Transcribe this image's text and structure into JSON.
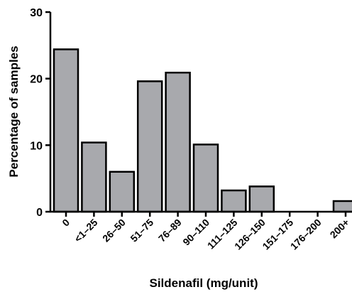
{
  "chart_data": {
    "type": "bar",
    "categories": [
      "0",
      "<1–25",
      "26–50",
      "51–75",
      "76–89",
      "90–110",
      "111–125",
      "126–150",
      "151–175",
      "176–200",
      "200+"
    ],
    "values": [
      24.4,
      10.4,
      6.0,
      19.6,
      20.9,
      10.1,
      3.2,
      3.8,
      0,
      0,
      1.6
    ],
    "title": "",
    "xlabel": "Sildenafil (mg/unit)",
    "ylabel": "Percentage of samples",
    "ylim": [
      0,
      30
    ],
    "yticks": [
      0,
      10,
      20,
      30
    ],
    "grid": false,
    "bar_color": "#a8a9ad",
    "edge_color": "#000000"
  }
}
